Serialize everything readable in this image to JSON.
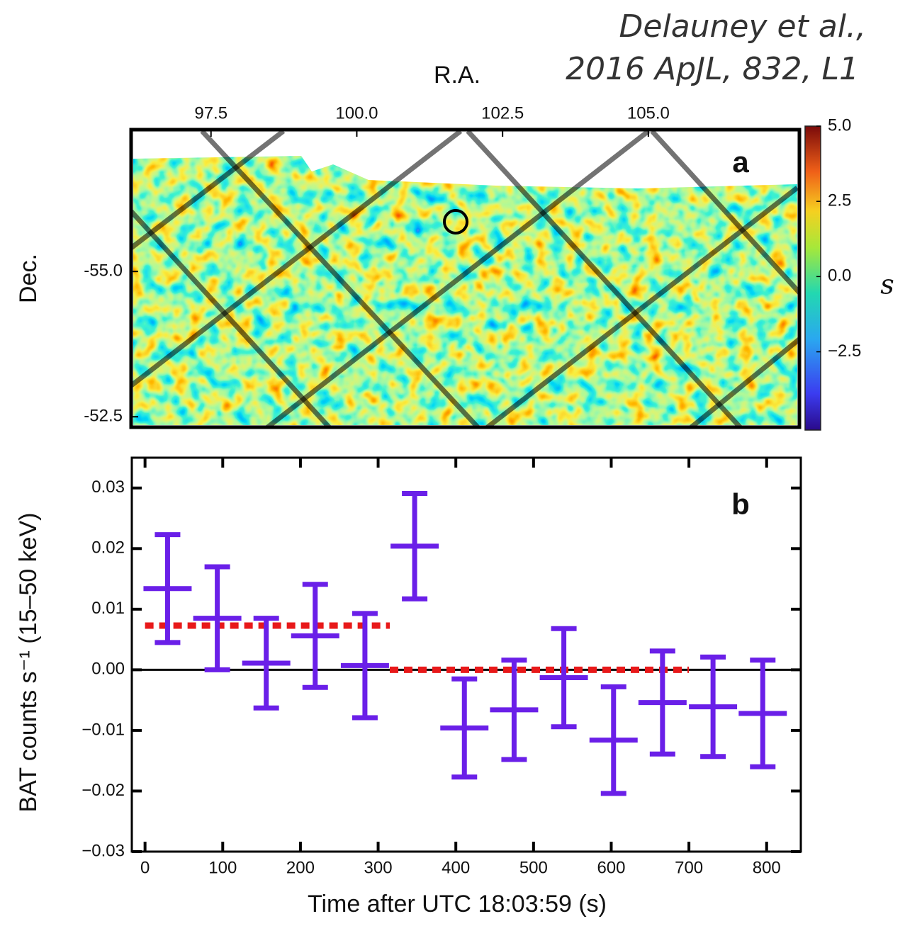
{
  "citation": [
    "Delauney et al.,",
    "2016 ApJL, 832, L1"
  ],
  "chart_data": [
    {
      "type": "heatmap",
      "panel_label": "a",
      "x_label": "R.A.",
      "y_label": "Dec.",
      "xlim": [
        96.13,
        107.59
      ],
      "xticks": [
        97.5,
        {
          "value": 100,
          "label": "100.0"
        },
        102.5,
        {
          "value": 105,
          "label": "105.0"
        }
      ],
      "ylim": [
        -52.32,
        -57.44
      ],
      "yticks": [
        {
          "value": -55,
          "label": "-55.0"
        },
        {
          "value": -52.5,
          "label": "-52.5"
        }
      ],
      "colorbar": {
        "label": "s",
        "lim": [
          -5.1,
          5.0
        ],
        "ticks": [
          {
            "value": 5,
            "label": "5.0"
          },
          2.5,
          {
            "value": 0,
            "label": "0.0"
          },
          {
            "value": -2.5,
            "label": "−2.5"
          }
        ]
      }
    },
    {
      "type": "errorbar",
      "panel_label": "b",
      "x_label": "Time after UTC 18:03:59 (s)",
      "y_label": "BAT counts s⁻¹ (15–50 keV)",
      "xlim": [
        -17,
        844
      ],
      "xticks": [
        0,
        100,
        200,
        300,
        400,
        500,
        600,
        700,
        800
      ],
      "ylim": [
        -0.03,
        0.035
      ],
      "yticks": [
        0.03,
        0.02,
        0.01,
        {
          "value": 0,
          "label": "0.00"
        },
        {
          "value": -0.01,
          "label": "−0.01"
        },
        {
          "value": -0.02,
          "label": "−0.02"
        },
        {
          "value": -0.03,
          "label": "−0.03"
        }
      ],
      "x": [
        29,
        93,
        156,
        219,
        283,
        347,
        411,
        475,
        539,
        603,
        666,
        731,
        795
      ],
      "xerr": 31,
      "series": [
        {
          "color": "#6a1fe8",
          "values": [
            0.0134,
            0.0085,
            0.0011,
            0.0056,
            0.0007,
            0.0204,
            -0.0096,
            -0.0066,
            -0.0013,
            -0.0116,
            -0.0054,
            -0.0061,
            -0.0072
          ],
          "errors": [
            0.0089,
            0.0085,
            0.0074,
            0.0085,
            0.0086,
            0.0087,
            0.0081,
            0.0082,
            0.0081,
            0.0088,
            0.0085,
            0.0082,
            0.0088
          ]
        }
      ],
      "fit": {
        "color": "#e8191a",
        "x": [
          0,
          315,
          315,
          315,
          700
        ],
        "values": [
          0.0073,
          0.0073,
          null,
          0,
          0
        ]
      },
      "hline": 0
    }
  ]
}
